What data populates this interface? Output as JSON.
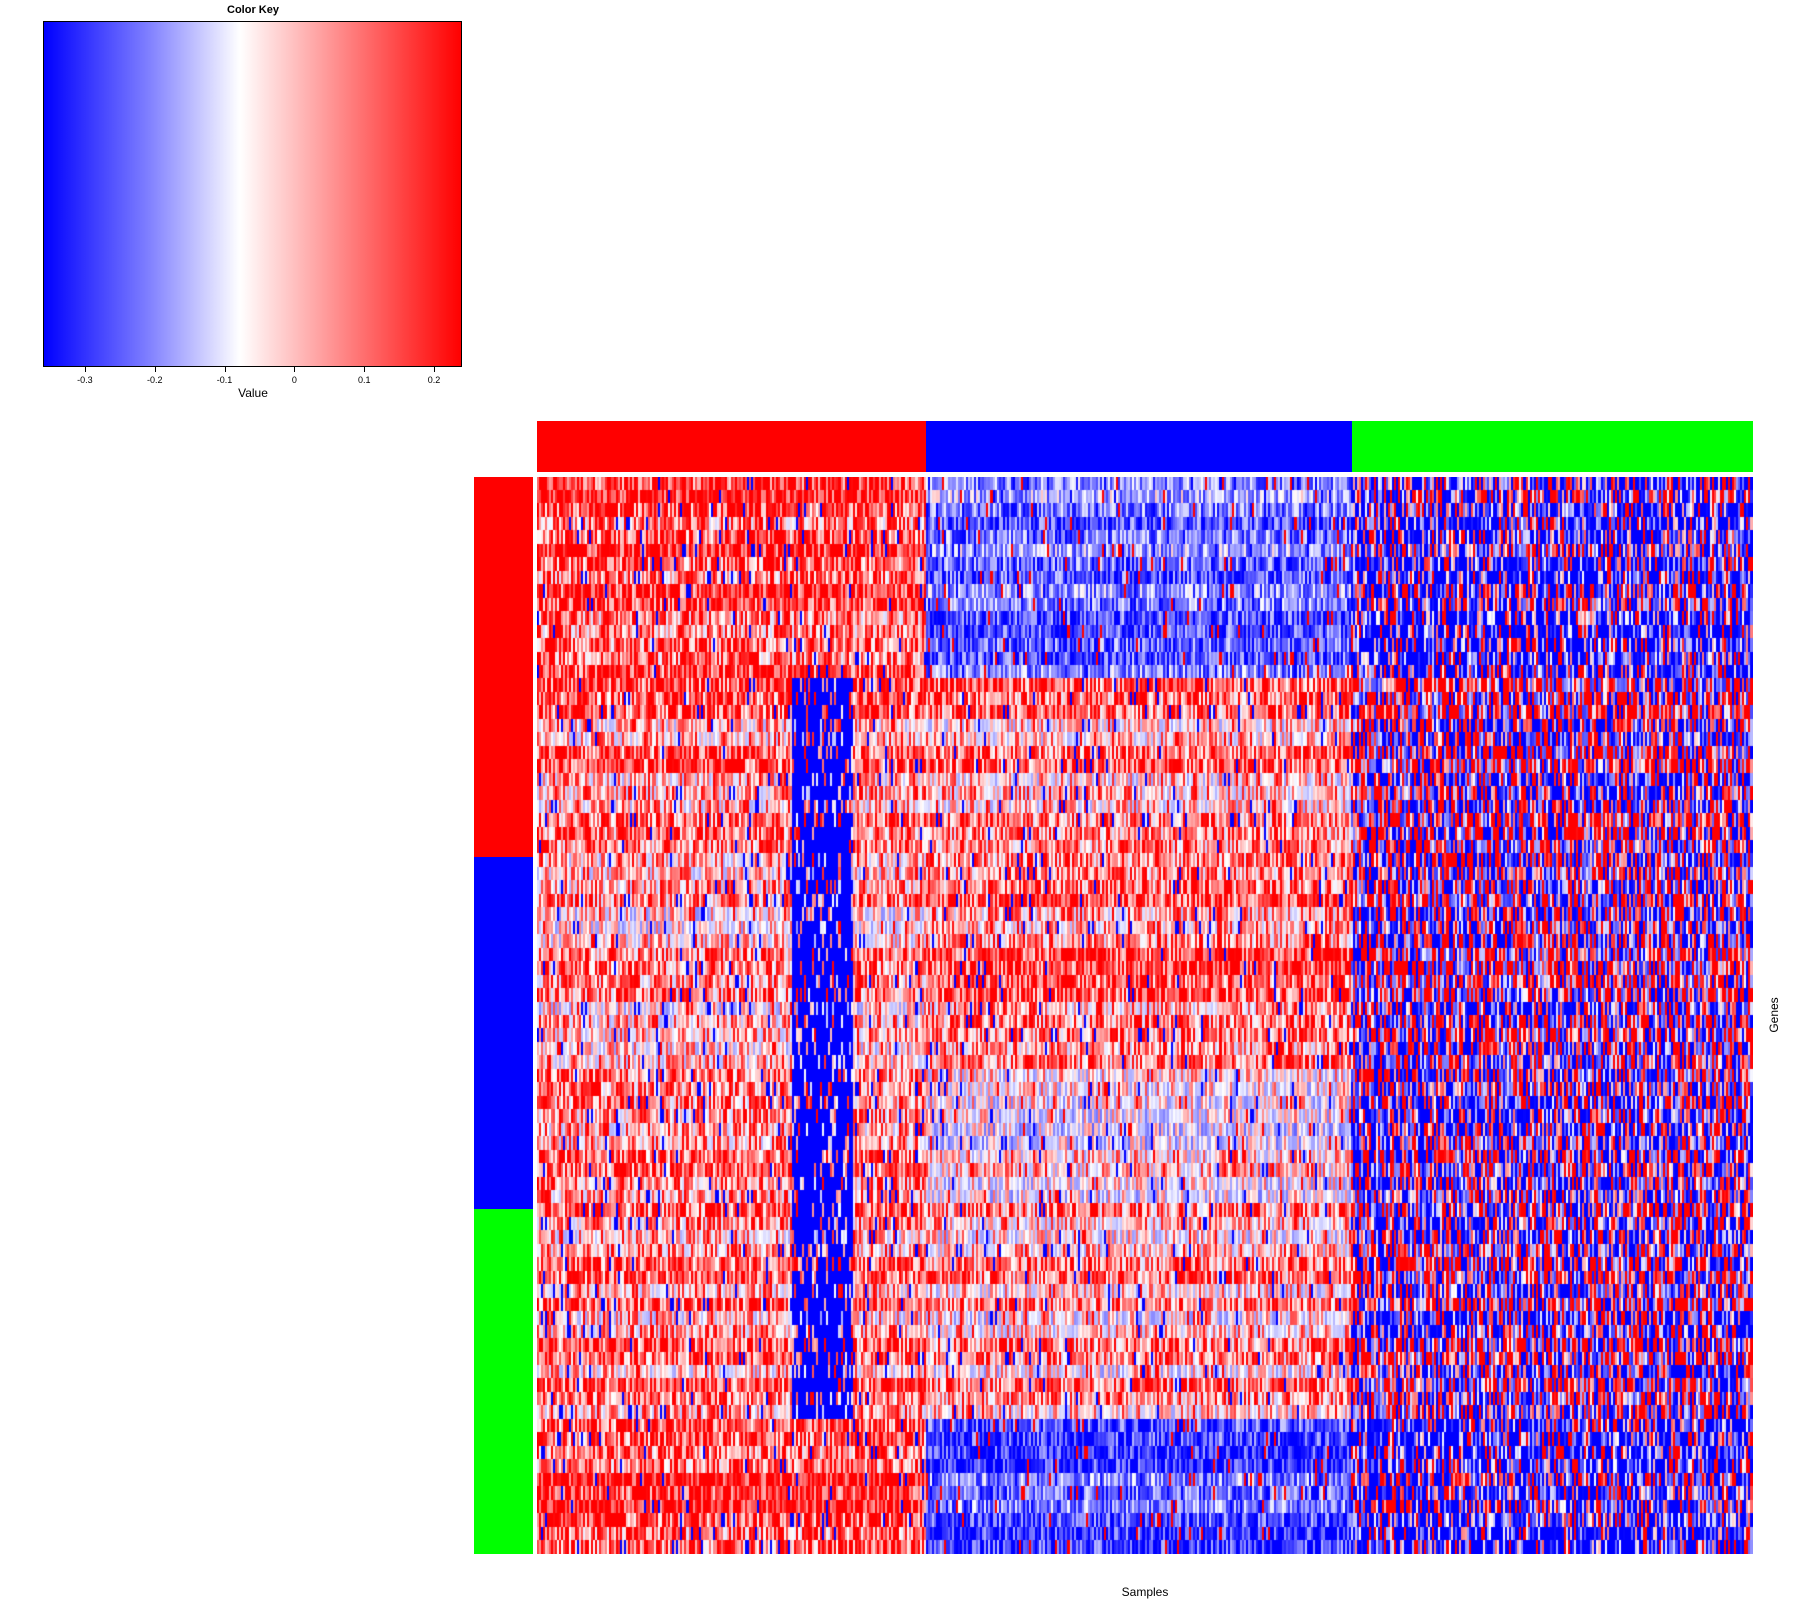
{
  "chart_data": {
    "type": "heatmap",
    "title": "",
    "xlabel": "Samples",
    "ylabel": "Genes",
    "color_key": {
      "title": "Color Key",
      "xlabel": "Value",
      "range": [
        -0.36,
        0.24
      ],
      "ticks": [
        "-0.3",
        "-0.2",
        "-0.1",
        "0",
        "0.1",
        "0.2"
      ],
      "tick_values": [
        -0.3,
        -0.2,
        -0.1,
        0,
        0.1,
        0.2
      ],
      "low_color": "#0000ff",
      "mid_color": "#ffffff",
      "high_color": "#ff0000"
    },
    "column_groups": [
      {
        "color": "#ff0000",
        "fraction": 0.32
      },
      {
        "color": "#0000ff",
        "fraction": 0.35
      },
      {
        "color": "#00ff00",
        "fraction": 0.33
      }
    ],
    "row_groups": [
      {
        "color": "#ff0000",
        "fraction": 0.353
      },
      {
        "color": "#0000ff",
        "fraction": 0.327
      },
      {
        "color": "#00ff00",
        "fraction": 0.32
      }
    ],
    "n_rows": 80,
    "n_cols": 600,
    "block_means": [
      [
        0.18,
        -0.18,
        -0.2
      ],
      [
        0.12,
        0.1,
        -0.02
      ],
      [
        0.06,
        0.13,
        -0.05
      ],
      [
        0.14,
        0.02,
        -0.08
      ],
      [
        0.1,
        0.06,
        -0.1
      ],
      [
        0.2,
        -0.22,
        -0.22
      ]
    ],
    "row_block_bounds": [
      0.0,
      0.19,
      0.353,
      0.55,
      0.68,
      0.88,
      1.0
    ]
  }
}
